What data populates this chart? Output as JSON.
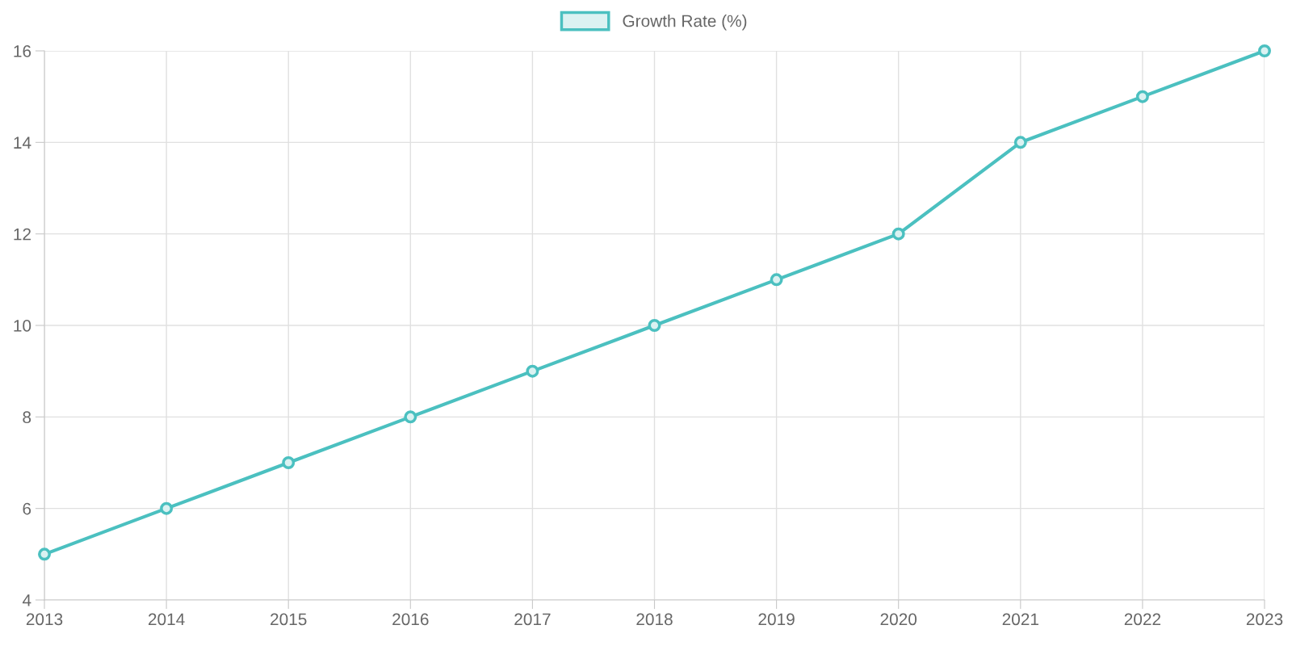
{
  "chart_data": {
    "type": "line",
    "categories": [
      "2013",
      "2014",
      "2015",
      "2016",
      "2017",
      "2018",
      "2019",
      "2020",
      "2021",
      "2022",
      "2023"
    ],
    "series": [
      {
        "name": "Growth Rate (%)",
        "color": "#4bc0c0",
        "values": [
          5,
          6,
          7,
          8,
          9,
          10,
          11,
          12,
          14,
          15,
          16
        ]
      }
    ],
    "ylim": [
      4,
      16
    ],
    "yticks": [
      4,
      6,
      8,
      10,
      12,
      14,
      16
    ],
    "grid": true,
    "legend": "top",
    "marker": "circle",
    "line_style": "solid"
  }
}
